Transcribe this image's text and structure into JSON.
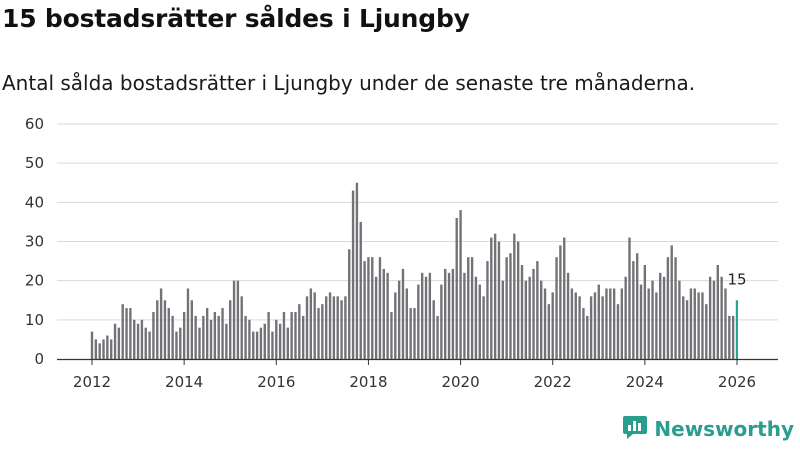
{
  "title": "15 bostadsrätter såldes i Ljungby",
  "subtitle": "Antal sålda bostadsrätter i Ljungby under de senaste tre månaderna.",
  "brand": {
    "name": "Newsworthy",
    "icon": "newsworthy-logo-icon",
    "color": "#2a9d8f"
  },
  "colors": {
    "bar": "#737277",
    "highlight": "#26a08f",
    "grid": "#d9d9d9",
    "axis": "#333333"
  },
  "chart_data": {
    "type": "bar",
    "title": "15 bostadsrätter såldes i Ljungby",
    "xlabel": "",
    "ylabel": "",
    "ylim": [
      0,
      60
    ],
    "yticks": [
      0,
      10,
      20,
      30,
      40,
      50,
      60
    ],
    "xticks": [
      {
        "label": "2012",
        "year": 2012
      },
      {
        "label": "2014",
        "year": 2014
      },
      {
        "label": "2016",
        "year": 2016
      },
      {
        "label": "2018",
        "year": 2018
      },
      {
        "label": "2020",
        "year": 2020
      },
      {
        "label": "2022",
        "year": 2022
      },
      {
        "label": "2024",
        "year": 2024
      },
      {
        "label": "2026",
        "year": 2026
      }
    ],
    "start": "2012-01",
    "end": "2026-03",
    "grid": true,
    "highlight_last": true,
    "last_value_label": "15",
    "values": [
      7,
      5,
      4,
      5,
      6,
      5,
      9,
      8,
      14,
      13,
      13,
      10,
      9,
      10,
      8,
      7,
      12,
      15,
      18,
      15,
      13,
      11,
      7,
      8,
      12,
      18,
      15,
      11,
      8,
      11,
      13,
      10,
      12,
      11,
      13,
      9,
      15,
      20,
      20,
      16,
      11,
      10,
      7,
      7,
      8,
      9,
      12,
      7,
      10,
      9,
      12,
      8,
      12,
      12,
      14,
      11,
      16,
      18,
      17,
      13,
      14,
      16,
      17,
      16,
      16,
      15,
      16,
      28,
      43,
      45,
      35,
      25,
      26,
      26,
      21,
      26,
      23,
      22,
      12,
      17,
      20,
      23,
      18,
      13,
      13,
      19,
      22,
      21,
      22,
      15,
      11,
      19,
      23,
      22,
      23,
      36,
      38,
      22,
      26,
      26,
      21,
      19,
      16,
      25,
      31,
      32,
      30,
      20,
      26,
      27,
      32,
      30,
      24,
      20,
      21,
      23,
      25,
      20,
      18,
      14,
      17,
      26,
      29,
      31,
      22,
      18,
      17,
      16,
      13,
      11,
      16,
      17,
      19,
      16,
      18,
      18,
      18,
      14,
      18,
      21,
      31,
      25,
      27,
      19,
      24,
      18,
      20,
      17,
      22,
      21,
      26,
      29,
      26,
      20,
      16,
      15,
      18,
      18,
      17,
      17,
      14,
      21,
      20,
      24,
      21,
      18,
      11,
      11,
      15
    ]
  }
}
